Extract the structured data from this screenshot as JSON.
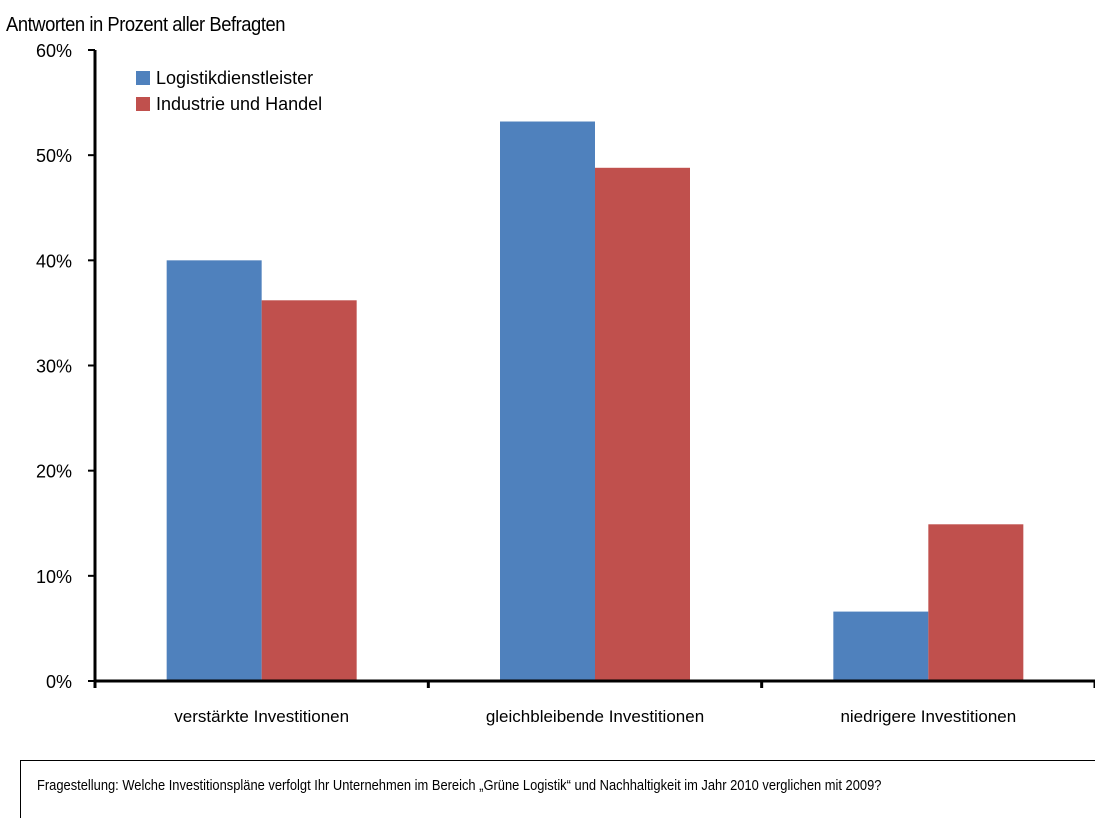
{
  "chart_data": {
    "type": "bar",
    "ylabel": "Antworten in Prozent aller Befragten",
    "categories": [
      "verstärkte Investitionen",
      "gleichbleibende Investitionen",
      "niedrigere Investitionen"
    ],
    "series": [
      {
        "name": "Logistikdienstleister",
        "color": "#4F81BD",
        "values": [
          40,
          53.2,
          6.6
        ]
      },
      {
        "name": "Industrie und Handel",
        "color": "#C0504D",
        "values": [
          36.2,
          48.8,
          14.9
        ]
      }
    ],
    "ylim": [
      0,
      60
    ],
    "yticks": [
      0,
      10,
      20,
      30,
      40,
      50,
      60
    ],
    "ytick_labels": [
      "0%",
      "10%",
      "20%",
      "30%",
      "40%",
      "50%",
      "60%"
    ],
    "grid": false,
    "legend_position": "top-left"
  },
  "question": "Fragestellung:  Welche Investitionspläne verfolgt Ihr Unternehmen im Bereich „Grüne Logistik“ und Nachhaltigkeit im Jahr 2010 verglichen mit 2009?"
}
